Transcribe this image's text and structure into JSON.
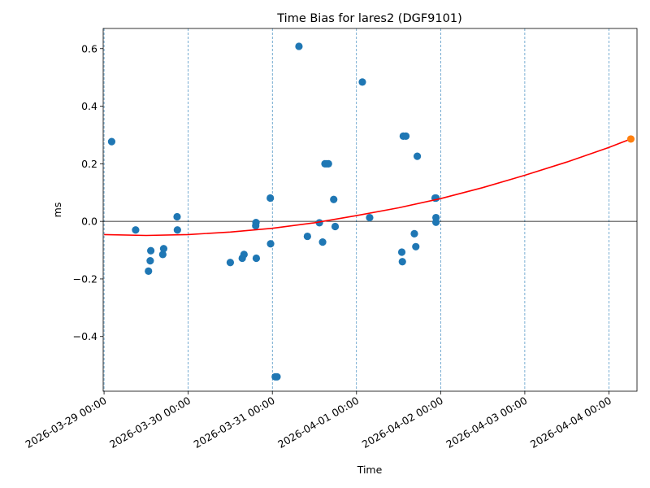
{
  "chart_data": {
    "type": "scatter",
    "title": "Time Bias for lares2 (DGF9101)",
    "xlabel": "Time",
    "ylabel": "ms",
    "x_is_date": true,
    "xlim": [
      "2026-03-28T23:45",
      "2026-04-04T08:00"
    ],
    "ylim": [
      -0.59,
      0.67
    ],
    "x_ticks": [
      {
        "value": "2026-03-29T00:00",
        "label": "2026-03-29 00:00"
      },
      {
        "value": "2026-03-30T00:00",
        "label": "2026-03-30 00:00"
      },
      {
        "value": "2026-03-31T00:00",
        "label": "2026-03-31 00:00"
      },
      {
        "value": "2026-04-01T00:00",
        "label": "2026-04-01 00:00"
      },
      {
        "value": "2026-04-02T00:00",
        "label": "2026-04-02 00:00"
      },
      {
        "value": "2026-04-03T00:00",
        "label": "2026-04-03 00:00"
      },
      {
        "value": "2026-04-04T00:00",
        "label": "2026-04-04 00:00"
      }
    ],
    "y_ticks": [
      {
        "value": 0.6,
        "label": "0.6"
      },
      {
        "value": 0.4,
        "label": "0.4"
      },
      {
        "value": 0.2,
        "label": "0.2"
      },
      {
        "value": 0.0,
        "label": "0.0"
      },
      {
        "value": -0.2,
        "label": "−0.2"
      },
      {
        "value": -0.4,
        "label": "−0.4"
      }
    ],
    "vertical_gridlines": "dashed at each day",
    "zero_line": 0.0,
    "colors": {
      "points": "#1f77b4",
      "fit": "#ff0000",
      "prediction": "#ff7f0e",
      "grid": "#1f77b4",
      "axes": "#000000"
    },
    "series": [
      {
        "kind": "scatter",
        "points": [
          {
            "x": "2026-03-29T02:10",
            "y": 0.277
          },
          {
            "x": "2026-03-29T09:00",
            "y": -0.03
          },
          {
            "x": "2026-03-29T12:40",
            "y": -0.173
          },
          {
            "x": "2026-03-29T13:10",
            "y": -0.137
          },
          {
            "x": "2026-03-29T13:20",
            "y": -0.102
          },
          {
            "x": "2026-03-29T16:45",
            "y": -0.115
          },
          {
            "x": "2026-03-29T17:00",
            "y": -0.095
          },
          {
            "x": "2026-03-29T20:50",
            "y": 0.016
          },
          {
            "x": "2026-03-29T20:55",
            "y": -0.03
          },
          {
            "x": "2026-03-30T12:00",
            "y": -0.143
          },
          {
            "x": "2026-03-30T15:25",
            "y": -0.128
          },
          {
            "x": "2026-03-30T15:55",
            "y": -0.115
          },
          {
            "x": "2026-03-30T19:15",
            "y": -0.015
          },
          {
            "x": "2026-03-30T19:20",
            "y": -0.004
          },
          {
            "x": "2026-03-30T19:25",
            "y": -0.128
          },
          {
            "x": "2026-03-30T23:25",
            "y": 0.081
          },
          {
            "x": "2026-03-30T23:30",
            "y": -0.078
          },
          {
            "x": "2026-03-31T00:50",
            "y": -0.54
          },
          {
            "x": "2026-03-31T01:20",
            "y": -0.54
          },
          {
            "x": "2026-03-31T07:35",
            "y": 0.608
          },
          {
            "x": "2026-03-31T10:00",
            "y": -0.052
          },
          {
            "x": "2026-03-31T13:25",
            "y": -0.005
          },
          {
            "x": "2026-03-31T14:20",
            "y": -0.072
          },
          {
            "x": "2026-03-31T15:00",
            "y": 0.2
          },
          {
            "x": "2026-03-31T15:30",
            "y": 0.2
          },
          {
            "x": "2026-03-31T16:00",
            "y": 0.2
          },
          {
            "x": "2026-03-31T17:30",
            "y": 0.076
          },
          {
            "x": "2026-03-31T17:55",
            "y": -0.018
          },
          {
            "x": "2026-04-01T01:40",
            "y": 0.484
          },
          {
            "x": "2026-04-01T03:45",
            "y": 0.013
          },
          {
            "x": "2026-04-01T12:55",
            "y": -0.107
          },
          {
            "x": "2026-04-01T13:05",
            "y": -0.14
          },
          {
            "x": "2026-04-01T13:20",
            "y": 0.296
          },
          {
            "x": "2026-04-01T14:05",
            "y": 0.296
          },
          {
            "x": "2026-04-01T16:30",
            "y": -0.043
          },
          {
            "x": "2026-04-01T16:55",
            "y": -0.088
          },
          {
            "x": "2026-04-01T17:20",
            "y": 0.226
          },
          {
            "x": "2026-04-01T22:25",
            "y": 0.081
          },
          {
            "x": "2026-04-01T22:40",
            "y": 0.081
          },
          {
            "x": "2026-04-01T22:40",
            "y": 0.013
          },
          {
            "x": "2026-04-01T22:40",
            "y": -0.003
          }
        ]
      },
      {
        "kind": "curve",
        "points": [
          {
            "x": "2026-03-29T00:00",
            "y": -0.046
          },
          {
            "x": "2026-03-29T12:00",
            "y": -0.049
          },
          {
            "x": "2026-03-30T00:00",
            "y": -0.046
          },
          {
            "x": "2026-03-30T12:00",
            "y": -0.037
          },
          {
            "x": "2026-03-31T00:00",
            "y": -0.024
          },
          {
            "x": "2026-03-31T12:00",
            "y": -0.005
          },
          {
            "x": "2026-04-01T00:00",
            "y": 0.02
          },
          {
            "x": "2026-04-01T12:00",
            "y": 0.047
          },
          {
            "x": "2026-04-02T00:00",
            "y": 0.079
          },
          {
            "x": "2026-04-02T12:00",
            "y": 0.117
          },
          {
            "x": "2026-04-03T00:00",
            "y": 0.16
          },
          {
            "x": "2026-04-03T12:00",
            "y": 0.206
          },
          {
            "x": "2026-04-04T00:00",
            "y": 0.257
          },
          {
            "x": "2026-04-04T06:15",
            "y": 0.286
          }
        ]
      },
      {
        "kind": "marker",
        "points": [
          {
            "x": "2026-04-04T06:15",
            "y": 0.286
          }
        ]
      }
    ]
  }
}
